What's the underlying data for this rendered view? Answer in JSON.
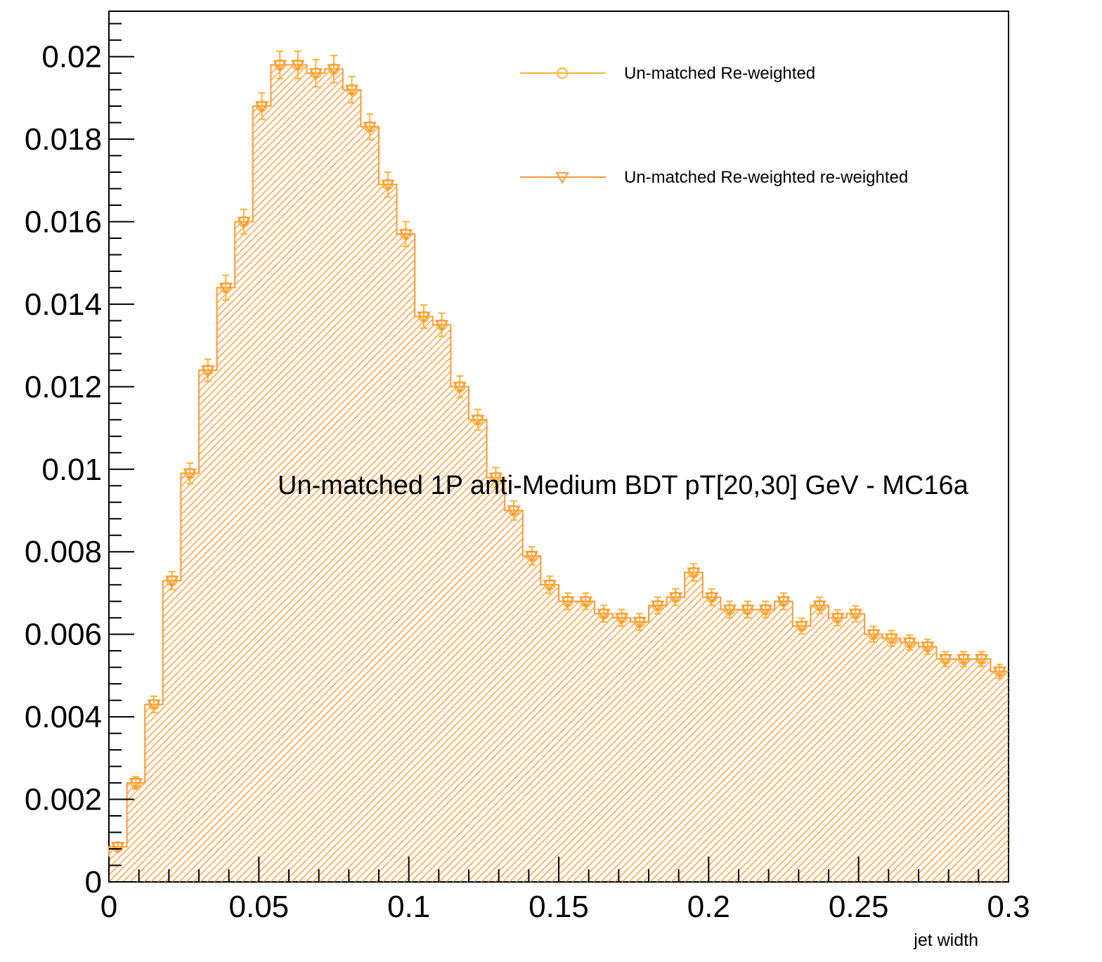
{
  "chart_data": {
    "type": "histogram",
    "title": "",
    "annotation": "Un-matched 1P anti-Medium BDT pT[20,30] GeV - MC16a",
    "xlabel": "jet width",
    "ylabel": "",
    "xlim": [
      0,
      0.3
    ],
    "ylim": [
      0,
      0.0211
    ],
    "x_ticks": [
      0,
      0.05,
      0.1,
      0.15,
      0.2,
      0.25,
      0.3
    ],
    "x_tick_labels": [
      "0",
      "0.05",
      "0.1",
      "0.15",
      "0.2",
      "0.25",
      "0.3"
    ],
    "y_ticks": [
      0,
      0.002,
      0.004,
      0.006,
      0.008,
      0.01,
      0.012,
      0.014,
      0.016,
      0.018,
      0.02
    ],
    "y_tick_labels": [
      "0",
      "0.002",
      "0.004",
      "0.006",
      "0.008",
      "0.01",
      "0.012",
      "0.014",
      "0.016",
      "0.018",
      "0.02"
    ],
    "grid": false,
    "legend_position": "top-right",
    "bin_width": 0.006,
    "bin_centers": [
      0.003,
      0.009,
      0.015,
      0.021,
      0.027,
      0.033,
      0.039,
      0.045,
      0.051,
      0.057,
      0.063,
      0.069,
      0.075,
      0.081,
      0.087,
      0.093,
      0.099,
      0.105,
      0.111,
      0.117,
      0.123,
      0.129,
      0.135,
      0.141,
      0.147,
      0.153,
      0.159,
      0.165,
      0.171,
      0.177,
      0.183,
      0.189,
      0.195,
      0.201,
      0.207,
      0.213,
      0.219,
      0.225,
      0.231,
      0.237,
      0.243,
      0.249,
      0.255,
      0.261,
      0.267,
      0.273,
      0.279,
      0.285,
      0.291,
      0.297
    ],
    "series": [
      {
        "name": "Un-matched Re-weighted",
        "marker": "circle-open",
        "color": "#ffb233",
        "values": [
          0.00085,
          0.0024,
          0.0043,
          0.0073,
          0.0099,
          0.0124,
          0.0144,
          0.016,
          0.0188,
          0.0198,
          0.0198,
          0.0196,
          0.0197,
          0.0192,
          0.0183,
          0.0169,
          0.0157,
          0.0137,
          0.0135,
          0.012,
          0.0112,
          0.0098,
          0.009,
          0.0079,
          0.0072,
          0.0068,
          0.0068,
          0.0065,
          0.0064,
          0.0063,
          0.0067,
          0.0069,
          0.0075,
          0.0069,
          0.0066,
          0.0066,
          0.0066,
          0.0068,
          0.0062,
          0.0067,
          0.0064,
          0.0065,
          0.006,
          0.0059,
          0.0058,
          0.0057,
          0.0054,
          0.0054,
          0.0054,
          0.0051
        ],
        "errors": [
          0.0001,
          0.00015,
          0.0002,
          0.00022,
          0.00025,
          0.00027,
          0.0003,
          0.0003,
          0.00032,
          0.00033,
          0.00033,
          0.00033,
          0.00033,
          0.00032,
          0.00031,
          0.0003,
          0.0003,
          0.00028,
          0.00028,
          0.00026,
          0.00025,
          0.00024,
          0.00023,
          0.00022,
          0.00021,
          0.0002,
          0.0002,
          0.0002,
          0.0002,
          0.0002,
          0.0002,
          0.0002,
          0.00021,
          0.0002,
          0.0002,
          0.0002,
          0.0002,
          0.0002,
          0.00019,
          0.0002,
          0.00019,
          0.00019,
          0.00019,
          0.00019,
          0.00018,
          0.00018,
          0.00018,
          0.00018,
          0.00018,
          0.00017
        ]
      },
      {
        "name": "Un-matched Re-weighted  re-weighted",
        "marker": "triangle-down-open",
        "color": "#ff9933",
        "fill": "hatched",
        "values": [
          0.00085,
          0.0024,
          0.0043,
          0.0073,
          0.0099,
          0.0124,
          0.0144,
          0.016,
          0.0188,
          0.0198,
          0.0198,
          0.0196,
          0.0197,
          0.0192,
          0.0183,
          0.0169,
          0.0157,
          0.0137,
          0.0135,
          0.012,
          0.0112,
          0.0098,
          0.009,
          0.0079,
          0.0072,
          0.0068,
          0.0068,
          0.0065,
          0.0064,
          0.0063,
          0.0067,
          0.0069,
          0.0075,
          0.0069,
          0.0066,
          0.0066,
          0.0066,
          0.0068,
          0.0062,
          0.0067,
          0.0064,
          0.0065,
          0.006,
          0.0059,
          0.0058,
          0.0057,
          0.0054,
          0.0054,
          0.0054,
          0.0051
        ],
        "errors": [
          0.0001,
          0.00015,
          0.0002,
          0.00022,
          0.00025,
          0.00027,
          0.0003,
          0.0003,
          0.00032,
          0.00033,
          0.00033,
          0.00033,
          0.00033,
          0.00032,
          0.00031,
          0.0003,
          0.0003,
          0.00028,
          0.00028,
          0.00026,
          0.00025,
          0.00024,
          0.00023,
          0.00022,
          0.00021,
          0.0002,
          0.0002,
          0.0002,
          0.0002,
          0.0002,
          0.0002,
          0.0002,
          0.00021,
          0.0002,
          0.0002,
          0.0002,
          0.0002,
          0.0002,
          0.00019,
          0.0002,
          0.00019,
          0.00019,
          0.00019,
          0.00019,
          0.00018,
          0.00018,
          0.00018,
          0.00018,
          0.00018,
          0.00017
        ]
      }
    ]
  }
}
